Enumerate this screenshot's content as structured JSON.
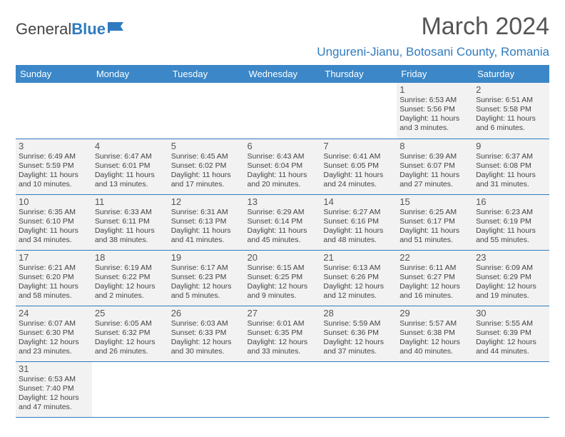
{
  "brand": {
    "part1": "General",
    "part2": "Blue"
  },
  "title": "March 2024",
  "location": "Ungureni-Jianu, Botosani County, Romania",
  "dayHeaders": [
    "Sunday",
    "Monday",
    "Tuesday",
    "Wednesday",
    "Thursday",
    "Friday",
    "Saturday"
  ],
  "colors": {
    "headerBg": "#3b87c8",
    "accent": "#2f7bbf",
    "cellBg": "#f2f2f2",
    "text": "#444444"
  },
  "weeks": [
    [
      null,
      null,
      null,
      null,
      null,
      {
        "n": "1",
        "sr": "6:53 AM",
        "ss": "5:56 PM",
        "dl": "11 hours and 3 minutes."
      },
      {
        "n": "2",
        "sr": "6:51 AM",
        "ss": "5:58 PM",
        "dl": "11 hours and 6 minutes."
      }
    ],
    [
      {
        "n": "3",
        "sr": "6:49 AM",
        "ss": "5:59 PM",
        "dl": "11 hours and 10 minutes."
      },
      {
        "n": "4",
        "sr": "6:47 AM",
        "ss": "6:01 PM",
        "dl": "11 hours and 13 minutes."
      },
      {
        "n": "5",
        "sr": "6:45 AM",
        "ss": "6:02 PM",
        "dl": "11 hours and 17 minutes."
      },
      {
        "n": "6",
        "sr": "6:43 AM",
        "ss": "6:04 PM",
        "dl": "11 hours and 20 minutes."
      },
      {
        "n": "7",
        "sr": "6:41 AM",
        "ss": "6:05 PM",
        "dl": "11 hours and 24 minutes."
      },
      {
        "n": "8",
        "sr": "6:39 AM",
        "ss": "6:07 PM",
        "dl": "11 hours and 27 minutes."
      },
      {
        "n": "9",
        "sr": "6:37 AM",
        "ss": "6:08 PM",
        "dl": "11 hours and 31 minutes."
      }
    ],
    [
      {
        "n": "10",
        "sr": "6:35 AM",
        "ss": "6:10 PM",
        "dl": "11 hours and 34 minutes."
      },
      {
        "n": "11",
        "sr": "6:33 AM",
        "ss": "6:11 PM",
        "dl": "11 hours and 38 minutes."
      },
      {
        "n": "12",
        "sr": "6:31 AM",
        "ss": "6:13 PM",
        "dl": "11 hours and 41 minutes."
      },
      {
        "n": "13",
        "sr": "6:29 AM",
        "ss": "6:14 PM",
        "dl": "11 hours and 45 minutes."
      },
      {
        "n": "14",
        "sr": "6:27 AM",
        "ss": "6:16 PM",
        "dl": "11 hours and 48 minutes."
      },
      {
        "n": "15",
        "sr": "6:25 AM",
        "ss": "6:17 PM",
        "dl": "11 hours and 51 minutes."
      },
      {
        "n": "16",
        "sr": "6:23 AM",
        "ss": "6:19 PM",
        "dl": "11 hours and 55 minutes."
      }
    ],
    [
      {
        "n": "17",
        "sr": "6:21 AM",
        "ss": "6:20 PM",
        "dl": "11 hours and 58 minutes."
      },
      {
        "n": "18",
        "sr": "6:19 AM",
        "ss": "6:22 PM",
        "dl": "12 hours and 2 minutes."
      },
      {
        "n": "19",
        "sr": "6:17 AM",
        "ss": "6:23 PM",
        "dl": "12 hours and 5 minutes."
      },
      {
        "n": "20",
        "sr": "6:15 AM",
        "ss": "6:25 PM",
        "dl": "12 hours and 9 minutes."
      },
      {
        "n": "21",
        "sr": "6:13 AM",
        "ss": "6:26 PM",
        "dl": "12 hours and 12 minutes."
      },
      {
        "n": "22",
        "sr": "6:11 AM",
        "ss": "6:27 PM",
        "dl": "12 hours and 16 minutes."
      },
      {
        "n": "23",
        "sr": "6:09 AM",
        "ss": "6:29 PM",
        "dl": "12 hours and 19 minutes."
      }
    ],
    [
      {
        "n": "24",
        "sr": "6:07 AM",
        "ss": "6:30 PM",
        "dl": "12 hours and 23 minutes."
      },
      {
        "n": "25",
        "sr": "6:05 AM",
        "ss": "6:32 PM",
        "dl": "12 hours and 26 minutes."
      },
      {
        "n": "26",
        "sr": "6:03 AM",
        "ss": "6:33 PM",
        "dl": "12 hours and 30 minutes."
      },
      {
        "n": "27",
        "sr": "6:01 AM",
        "ss": "6:35 PM",
        "dl": "12 hours and 33 minutes."
      },
      {
        "n": "28",
        "sr": "5:59 AM",
        "ss": "6:36 PM",
        "dl": "12 hours and 37 minutes."
      },
      {
        "n": "29",
        "sr": "5:57 AM",
        "ss": "6:38 PM",
        "dl": "12 hours and 40 minutes."
      },
      {
        "n": "30",
        "sr": "5:55 AM",
        "ss": "6:39 PM",
        "dl": "12 hours and 44 minutes."
      }
    ],
    [
      {
        "n": "31",
        "sr": "6:53 AM",
        "ss": "7:40 PM",
        "dl": "12 hours and 47 minutes."
      },
      null,
      null,
      null,
      null,
      null,
      null
    ]
  ],
  "labels": {
    "sunrise": "Sunrise: ",
    "sunset": "Sunset: ",
    "daylight": "Daylight: "
  }
}
